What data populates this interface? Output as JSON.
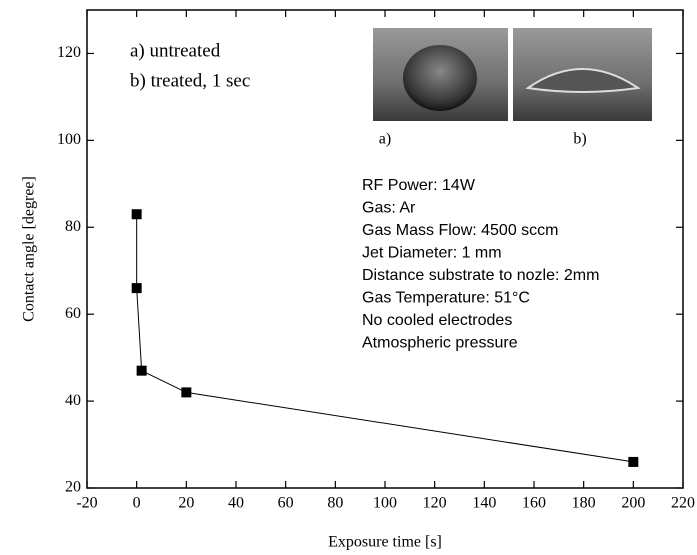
{
  "chart_data": {
    "type": "line",
    "x_label": "Exposure time [s]",
    "y_label": "Contact angle [degree]",
    "x": [
      0,
      0,
      2,
      20,
      200
    ],
    "series": [
      {
        "name": null,
        "color": "#000000",
        "values": [
          83,
          66,
          47,
          42,
          26
        ]
      }
    ],
    "xlim": [
      -20,
      220
    ],
    "xticks": [
      -20,
      0,
      20,
      40,
      60,
      80,
      100,
      120,
      140,
      160,
      180,
      200,
      220
    ],
    "ylim": [
      20,
      130
    ],
    "yticks": [
      20,
      40,
      60,
      80,
      100,
      120
    ],
    "sample_notes": [
      "a) untreated",
      "b) treated,  1 sec"
    ],
    "inset_labels": [
      "a)",
      "b)"
    ],
    "conditions": [
      "RF Power: 14W",
      "Gas: Ar",
      "Gas Mass Flow: 4500 sccm",
      "Jet Diameter: 1 mm",
      "Distance substrate to nozle: 2mm",
      "Gas Temperature: 51°C",
      "No cooled electrodes",
      "Atmospheric pressure"
    ]
  }
}
